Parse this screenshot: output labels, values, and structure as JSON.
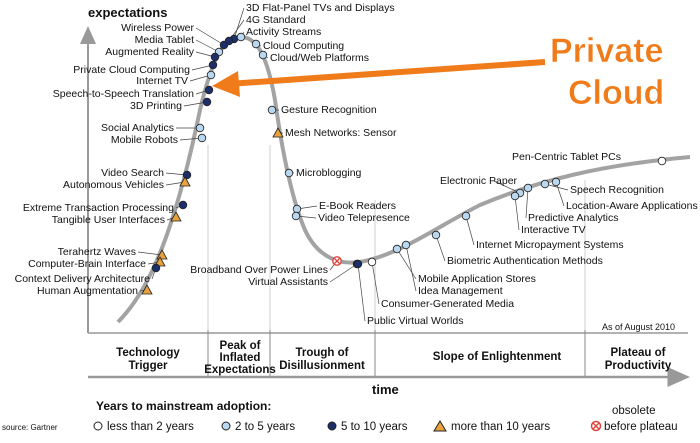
{
  "chart": {
    "y_axis_label": "expectations",
    "x_axis_label": "time",
    "as_of": "As of August 2010",
    "source": "source: Gartner",
    "callout": {
      "line1": "Private",
      "line2": "Cloud",
      "color": "#f07b1a"
    }
  },
  "phases": [
    {
      "id": "trigger",
      "line1": "Technology",
      "line2": "Trigger"
    },
    {
      "id": "peak",
      "line1": "Peak of",
      "line2": "Inflated",
      "line3": "Expectations"
    },
    {
      "id": "trough",
      "line1": "Trough of",
      "line2": "Disillusionment"
    },
    {
      "id": "slope",
      "line1": "Slope of Enlightenment"
    },
    {
      "id": "plateau",
      "line1": "Plateau of",
      "line2": "Productivity"
    }
  ],
  "legend": {
    "title": "Years to mainstream adoption:",
    "items": [
      {
        "marker": "white",
        "label": "less than 2 years"
      },
      {
        "marker": "lightblue",
        "label": "2 to 5 years"
      },
      {
        "marker": "navy",
        "label": "5 to 10 years"
      },
      {
        "marker": "triangle",
        "label": "more than 10 years"
      },
      {
        "marker": "obsolete",
        "label_line1": "obsolete",
        "label_line2": "before plateau"
      }
    ]
  },
  "colors": {
    "curve": "#a3a3a3",
    "white_marker": "#ffffff",
    "lightblue_marker": "#b9d7ee",
    "navy_marker": "#1c2f6b",
    "triangle_marker": "#e9a23b",
    "obsolete_marker": "#e0443e"
  },
  "technologies": [
    {
      "label": "3D Flat-Panel TVs and Displays",
      "marker": "navy"
    },
    {
      "label": "4G Standard",
      "marker": "navy"
    },
    {
      "label": "Activity Streams",
      "marker": "lightblue"
    },
    {
      "label": "Wireless Power",
      "marker": "navy"
    },
    {
      "label": "Media Tablet",
      "marker": "lightblue"
    },
    {
      "label": "Augmented Reality",
      "marker": "navy"
    },
    {
      "label": "Cloud Computing",
      "marker": "lightblue"
    },
    {
      "label": "Cloud/Web Platforms",
      "marker": "lightblue"
    },
    {
      "label": "Private Cloud Computing",
      "marker": "navy"
    },
    {
      "label": "Internet TV",
      "marker": "lightblue"
    },
    {
      "label": "Speech-to-Speech Translation",
      "marker": "navy"
    },
    {
      "label": "3D Printing",
      "marker": "navy"
    },
    {
      "label": "Gesture Recognition",
      "marker": "lightblue"
    },
    {
      "label": "Mesh Networks: Sensor",
      "marker": "triangle"
    },
    {
      "label": "Social Analytics",
      "marker": "lightblue"
    },
    {
      "label": "Mobile Robots",
      "marker": "lightblue"
    },
    {
      "label": "Microblogging",
      "marker": "lightblue"
    },
    {
      "label": "Video Search",
      "marker": "navy"
    },
    {
      "label": "Autonomous Vehicles",
      "marker": "triangle"
    },
    {
      "label": "E-Book Readers",
      "marker": "lightblue"
    },
    {
      "label": "Video Telepresence",
      "marker": "lightblue"
    },
    {
      "label": "Extreme Transaction Processing",
      "marker": "navy"
    },
    {
      "label": "Tangible User Interfaces",
      "marker": "triangle"
    },
    {
      "label": "Pen-Centric Tablet PCs",
      "marker": "white"
    },
    {
      "label": "Electronic Paper",
      "marker": "lightblue"
    },
    {
      "label": "Speech Recognition",
      "marker": "lightblue"
    },
    {
      "label": "Location-Aware Applications",
      "marker": "lightblue"
    },
    {
      "label": "Predictive Analytics",
      "marker": "lightblue"
    },
    {
      "label": "Interactive TV",
      "marker": "lightblue"
    },
    {
      "label": "Internet Micropayment Systems",
      "marker": "lightblue"
    },
    {
      "label": "Biometric Authentication Methods",
      "marker": "lightblue"
    },
    {
      "label": "Terahertz Waves",
      "marker": "triangle"
    },
    {
      "label": "Computer-Brain Interface",
      "marker": "triangle"
    },
    {
      "label": "Context Delivery Architecture",
      "marker": "navy"
    },
    {
      "label": "Human Augmentation",
      "marker": "triangle"
    },
    {
      "label": "Broadband Over Power Lines",
      "marker": "obsolete"
    },
    {
      "label": "Virtual Assistants",
      "marker": "navy"
    },
    {
      "label": "Mobile Application Stores",
      "marker": "lightblue"
    },
    {
      "label": "Idea Management",
      "marker": "lightblue"
    },
    {
      "label": "Consumer-Generated Media",
      "marker": "white"
    },
    {
      "label": "Public Virtual Worlds",
      "marker": "navy"
    }
  ]
}
